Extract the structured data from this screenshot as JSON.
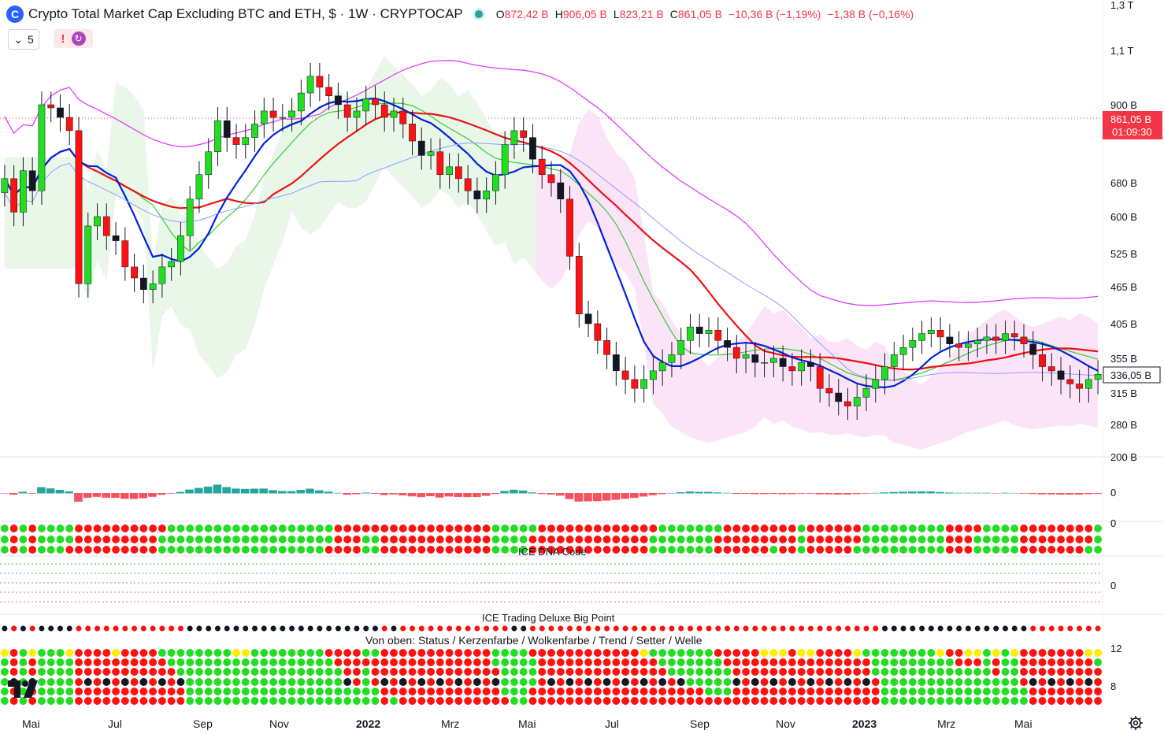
{
  "header": {
    "symbol_icon": "C",
    "title": "Crypto Total Market Cap Excluding BTC and ETH, $ · 1W · CRYPTOCAP",
    "ohlc": [
      {
        "key": "O",
        "value": "872,42 B"
      },
      {
        "key": "H",
        "value": "906,05 B"
      },
      {
        "key": "L",
        "value": "823,21 B"
      },
      {
        "key": "C",
        "value": "861,05 B"
      }
    ],
    "change": "−10,36 B (−1,19%)",
    "change2": "−1,38 B (−0,16%)"
  },
  "controls": {
    "interval_count": "5",
    "alert_label": "!",
    "sync_icon": "sync-icon",
    "chevron_icon": "chevron-down-icon"
  },
  "price_badge": {
    "value": "861,05 B",
    "countdown": "01:09:30",
    "color": "#f23645"
  },
  "last_value_badge": "336,05 B",
  "panes": {
    "macd_zero": "0",
    "dna_label": "ICE DNA Code",
    "dna_zero": "0",
    "dna_top_zero": "0",
    "bigpoint_label": "ICE Trading Deluxe Big Point",
    "rows_label": "Von oben: Status / Kerzenfarbe / Wolkenfarbe / Trend / Setter / Welle",
    "rows_scale_12": "12",
    "rows_scale_8": "8"
  },
  "colors": {
    "bull": "#22dd22",
    "bear": "#ff1111",
    "tenkan": "#0022dd",
    "kijun": "#ee1111",
    "cloud_bull": "#e8f7e8",
    "cloud_bear": "#fbe4f7"
  },
  "icons": {
    "logo": "tradingview-logo-icon",
    "settings": "gear-icon"
  },
  "chart_data": {
    "type": "candlestick",
    "title": "Crypto Total Market Cap Excluding BTC and ETH, $ · 1W · CRYPTOCAP",
    "y_ticks": [
      "1,3 T",
      "1,1 T",
      "900 B",
      "680 B",
      "600 B",
      "525 B",
      "465 B",
      "405 B",
      "355 B",
      "315 B",
      "280 B",
      "200 B"
    ],
    "y_tick_values": [
      1300,
      1100,
      900,
      680,
      600,
      525,
      465,
      405,
      355,
      315,
      280,
      200
    ],
    "x_labels": [
      "Mai",
      "Jul",
      "Sep",
      "Nov",
      "2022",
      "Mrz",
      "Mai",
      "Jul",
      "Sep",
      "Nov",
      "2023",
      "Mrz",
      "Mai"
    ],
    "x_label_bold": [
      false,
      false,
      false,
      false,
      true,
      false,
      false,
      false,
      false,
      false,
      true,
      false,
      false
    ],
    "close": [
      690,
      610,
      710,
      660,
      900,
      890,
      860,
      820,
      470,
      580,
      600,
      560,
      550,
      500,
      480,
      460,
      470,
      500,
      510,
      560,
      640,
      700,
      760,
      850,
      800,
      780,
      800,
      840,
      880,
      860,
      860,
      880,
      940,
      1000,
      960,
      930,
      900,
      860,
      880,
      920,
      900,
      860,
      880,
      840,
      790,
      750,
      760,
      700,
      720,
      690,
      660,
      640,
      660,
      700,
      780,
      820,
      800,
      740,
      700,
      680,
      640,
      520,
      420,
      405,
      380,
      360,
      340,
      330,
      320,
      330,
      340,
      350,
      360,
      380,
      400,
      390,
      395,
      380,
      370,
      355,
      360,
      350,
      350,
      355,
      345,
      340,
      350,
      345,
      320,
      315,
      305,
      300,
      310,
      320,
      330,
      345,
      360,
      370,
      380,
      390,
      395,
      385,
      375,
      370,
      375,
      380,
      385,
      380,
      390,
      385,
      375,
      360,
      345,
      340,
      330,
      325,
      320,
      330,
      336
    ]
  }
}
